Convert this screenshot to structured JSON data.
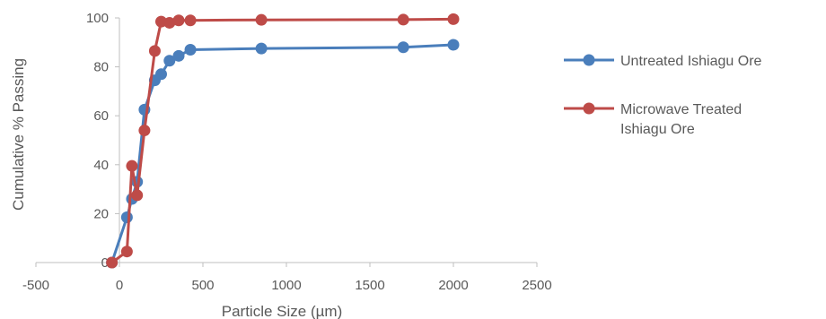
{
  "chart_data": {
    "type": "scatter",
    "title": "",
    "xlabel": "Particle Size (µm)",
    "ylabel": "Cumulative % Passing",
    "xlim": [
      -500,
      2500
    ],
    "ylim": [
      0,
      100
    ],
    "xticks": [
      -500,
      0,
      500,
      1000,
      1500,
      2000,
      2500
    ],
    "yticks": [
      0,
      20,
      40,
      60,
      80,
      100
    ],
    "grid": false,
    "legend_position": "right",
    "series": [
      {
        "name": "Untreated Ishiagu Ore",
        "color": "#4a7ebb",
        "x": [
          -45,
          45,
          75,
          106,
          150,
          212,
          250,
          300,
          355,
          425,
          850,
          1700,
          2000
        ],
        "y": [
          0,
          18.5,
          26,
          33,
          62.5,
          74.5,
          77,
          82.5,
          84.5,
          87,
          87.5,
          88,
          89
        ]
      },
      {
        "name": "Microwave Treated Ishiagu Ore",
        "legend_lines": [
          "Microwave Treated",
          "Ishiagu Ore"
        ],
        "color": "#be4b48",
        "x": [
          -45,
          45,
          75,
          106,
          150,
          212,
          250,
          300,
          355,
          425,
          850,
          1700,
          2000
        ],
        "y": [
          0,
          4.5,
          39.5,
          27.5,
          54,
          86.5,
          98.5,
          98,
          99,
          99,
          99.2,
          99.3,
          99.5
        ]
      }
    ]
  }
}
